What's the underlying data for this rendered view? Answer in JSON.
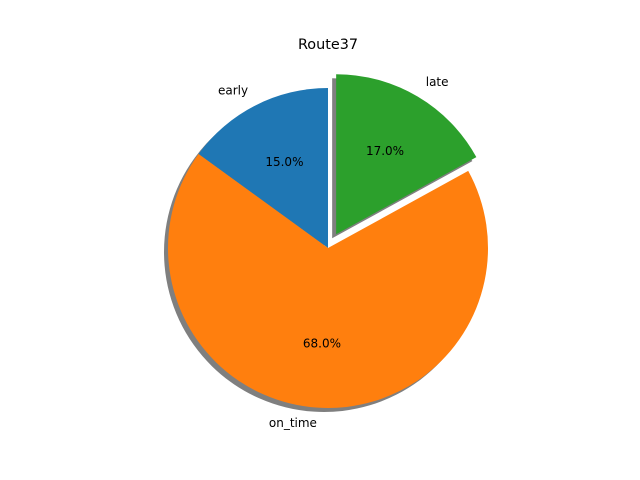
{
  "chart_data": {
    "type": "pie",
    "title": "Route37",
    "categories": [
      "early",
      "on_time",
      "late"
    ],
    "values": [
      15.0,
      68.0,
      17.0
    ],
    "percent_labels": [
      "15.0%",
      "68.0%",
      "17.0%"
    ],
    "colors": [
      "#1f77b4",
      "#ff7f0e",
      "#2ca02c"
    ],
    "explode": [
      0,
      0,
      0.1
    ],
    "start_angle_deg": 90,
    "direction": "counterclockwise",
    "shadow": true,
    "legend": false
  }
}
